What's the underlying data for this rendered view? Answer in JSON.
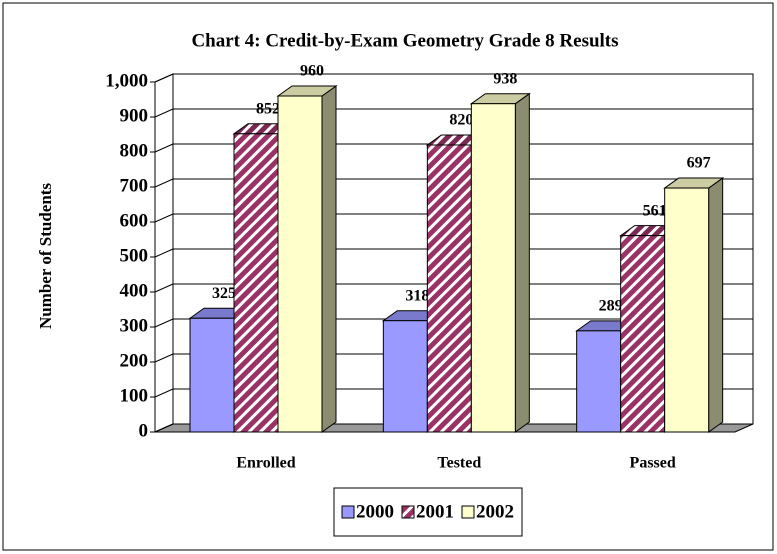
{
  "chart_data": {
    "type": "bar3d",
    "title": "Chart 4: Credit-by-Exam Geometry Grade 8 Results",
    "y_label": "Number of Students",
    "categories": [
      "Enrolled",
      "Tested",
      "Passed"
    ],
    "series": [
      {
        "name": "2000",
        "color": "#9999ff",
        "values": [
          325,
          318,
          289
        ]
      },
      {
        "name": "2001",
        "color": "#993366",
        "hatch": true,
        "values": [
          852,
          820,
          561
        ]
      },
      {
        "name": "2002",
        "color": "#ffffcc",
        "values": [
          960,
          938,
          697
        ]
      }
    ],
    "ylim": [
      0,
      1000
    ],
    "yticks": [
      0,
      100,
      200,
      300,
      400,
      500,
      600,
      700,
      800,
      900,
      {
        "value": 1000,
        "label": "1,000"
      }
    ],
    "grid": true,
    "legend": "bottom"
  }
}
